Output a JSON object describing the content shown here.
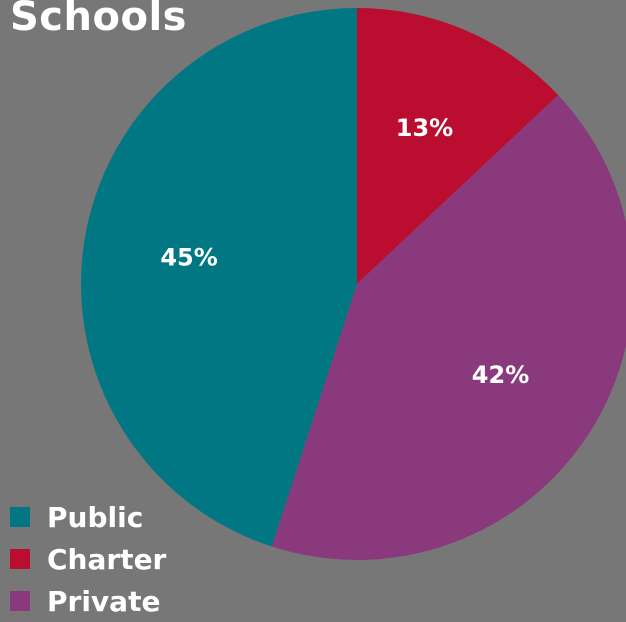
{
  "chart_data": {
    "type": "pie",
    "title": "Schools",
    "slices": [
      {
        "name": "Charter",
        "value": 13,
        "label": "13%",
        "color": "#bb0d30"
      },
      {
        "name": "Private",
        "value": 42,
        "label": "42%",
        "color": "#8a3a7c"
      },
      {
        "name": "Public",
        "value": 45,
        "label": "45%",
        "color": "#007783"
      }
    ],
    "legend": {
      "placement": "bottom-left",
      "items": [
        {
          "name": "Public",
          "color": "#007783"
        },
        {
          "name": "Charter",
          "color": "#bb0d30"
        },
        {
          "name": "Private",
          "color": "#8a3a7c"
        }
      ]
    }
  }
}
